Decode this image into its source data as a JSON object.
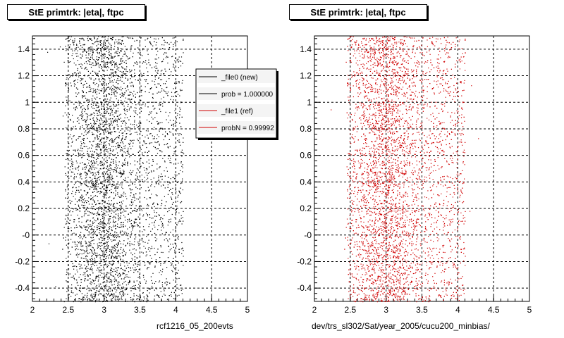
{
  "panels": [
    {
      "title": "StE primtrk: |eta|, ftpc",
      "xcaption": "rcf1216_05_200evts",
      "point_color": "#000000"
    },
    {
      "title": "StE primtrk: |eta|, ftpc",
      "xcaption": "dev/trs_sl302/Sat/year_2005/cucu200_minbias/",
      "point_color": "#d00000"
    }
  ],
  "legend": {
    "entries": [
      {
        "label": "_file0 (new)",
        "color": "#000000"
      },
      {
        "label": "prob = 1.000000",
        "color": "#000000"
      },
      {
        "label": "_file1 (ref)",
        "color": "#d00000"
      },
      {
        "label": "probN = 0.99992",
        "color": "#d00000"
      }
    ]
  },
  "chart_data": [
    {
      "type": "scatter",
      "title": "StE primtrk: |eta|, ftpc",
      "xlabel": "rcf1216_05_200evts",
      "ylabel": "",
      "xlim": [
        2,
        5
      ],
      "ylim": [
        -0.5,
        1.5
      ],
      "xticks": [
        "2",
        "2.5",
        "3",
        "3.5",
        "4",
        "4.5",
        "5"
      ],
      "yticks": [
        "-0.4",
        "-0.2",
        "-0",
        "0.2",
        "0.4",
        "0.6",
        "0.8",
        "1",
        "1.2",
        "1.4"
      ],
      "grid": true,
      "point_density": {
        "x_range": [
          2.45,
          4.1
        ],
        "peak_x": 3.0,
        "y_range": [
          -0.5,
          1.5
        ]
      },
      "series": [
        {
          "name": "_file0 (new)",
          "color": "#000000"
        }
      ]
    },
    {
      "type": "scatter",
      "title": "StE primtrk: |eta|, ftpc",
      "xlabel": "dev/trs_sl302/Sat/year_2005/cucu200_minbias/",
      "ylabel": "",
      "xlim": [
        2,
        5
      ],
      "ylim": [
        -0.5,
        1.5
      ],
      "xticks": [
        "2",
        "2.5",
        "3",
        "3.5",
        "4",
        "4.5",
        "5"
      ],
      "yticks": [
        "-0.4",
        "-0.2",
        "-0",
        "0.2",
        "0.4",
        "0.6",
        "0.8",
        "1",
        "1.2",
        "1.4"
      ],
      "grid": true,
      "point_density": {
        "x_range": [
          2.45,
          4.1
        ],
        "peak_x": 3.0,
        "y_range": [
          -0.5,
          1.5
        ]
      },
      "series": [
        {
          "name": "_file1 (ref)",
          "color": "#d00000"
        }
      ]
    }
  ]
}
